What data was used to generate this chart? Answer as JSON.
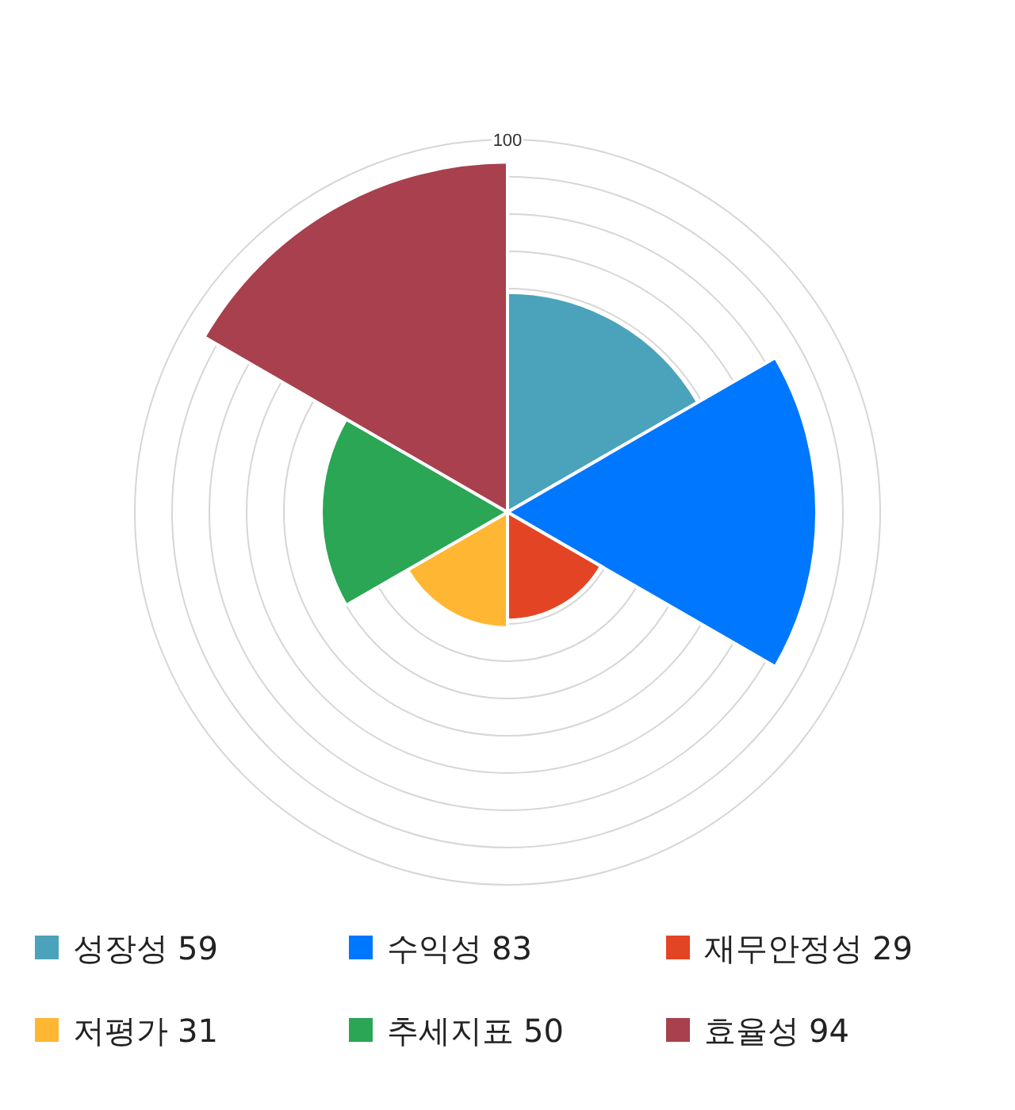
{
  "chart_data": {
    "type": "other",
    "categories": [
      "성장성",
      "수익성",
      "재무안정성",
      "저평가",
      "추세지표",
      "효율성"
    ],
    "values": [
      59,
      83,
      29,
      31,
      50,
      94
    ],
    "value_labels": [
      "59",
      "83",
      "29",
      "31",
      "50",
      "94"
    ],
    "colors": [
      "#4aa3ba",
      "#0077ff",
      "#e34524",
      "#ffb733",
      "#2aa654",
      "#a8404d"
    ],
    "annotations": [
      "100"
    ]
  }
}
